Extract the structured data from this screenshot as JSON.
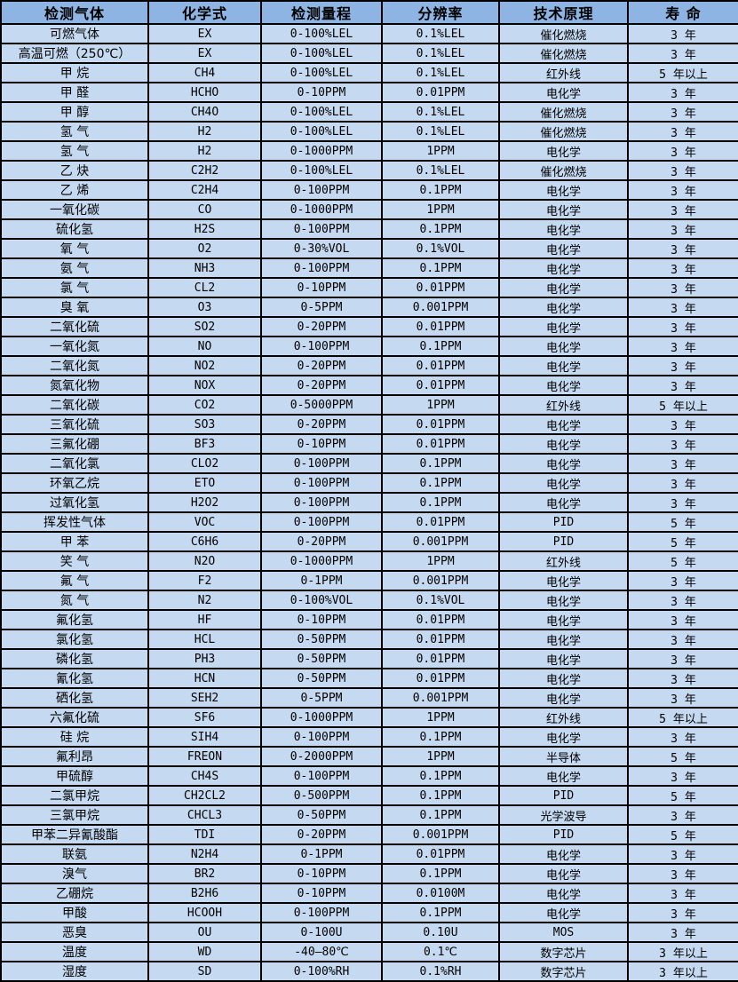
{
  "colors": {
    "header_bg": "#8DB4E2",
    "row_bg": "#C5D9F1",
    "border": "#000000",
    "text": "#000000"
  },
  "table": {
    "columns": [
      {
        "label": "检测气体"
      },
      {
        "label": "化学式"
      },
      {
        "label": "检测量程"
      },
      {
        "label": "分辨率"
      },
      {
        "label": "技术原理"
      },
      {
        "label": "寿 命"
      }
    ],
    "rows": [
      [
        "可燃气体",
        "EX",
        "0-100%LEL",
        "0.1%LEL",
        "催化燃烧",
        "3 年"
      ],
      [
        "高温可燃（250℃）",
        "EX",
        "0-100%LEL",
        "0.1%LEL",
        "催化燃烧",
        "3 年"
      ],
      [
        "甲 烷",
        "CH4",
        "0-100%LEL",
        "0.1%LEL",
        "红外线",
        "5 年以上"
      ],
      [
        "甲 醛",
        "HCHO",
        "0-10PPM",
        "0.01PPM",
        "电化学",
        "3 年"
      ],
      [
        "甲 醇",
        "CH4O",
        "0-100%LEL",
        "0.1%LEL",
        "催化燃烧",
        "3 年"
      ],
      [
        "氢 气",
        "H2",
        "0-100%LEL",
        "0.1%LEL",
        "催化燃烧",
        "3 年"
      ],
      [
        "氢 气",
        "H2",
        "0-1000PPM",
        "1PPM",
        "电化学",
        "3 年"
      ],
      [
        "乙 炔",
        "C2H2",
        "0-100%LEL",
        "0.1%LEL",
        "催化燃烧",
        "3 年"
      ],
      [
        "乙 烯",
        "C2H4",
        "0-100PPM",
        "0.1PPM",
        "电化学",
        "3 年"
      ],
      [
        "一氧化碳",
        "CO",
        "0-1000PPM",
        "1PPM",
        "电化学",
        "3 年"
      ],
      [
        "硫化氢",
        "H2S",
        "0-100PPM",
        "0.1PPM",
        "电化学",
        "3 年"
      ],
      [
        "氧 气",
        "O2",
        "0-30%VOL",
        "0.1%VOL",
        "电化学",
        "3 年"
      ],
      [
        "氨 气",
        "NH3",
        "0-100PPM",
        "0.1PPM",
        "电化学",
        "3 年"
      ],
      [
        "氯 气",
        "CL2",
        "0-10PPM",
        "0.01PPM",
        "电化学",
        "3 年"
      ],
      [
        "臭 氧",
        "O3",
        "0-5PPM",
        "0.001PPM",
        "电化学",
        "3 年"
      ],
      [
        "二氧化硫",
        "SO2",
        "0-20PPM",
        "0.01PPM",
        "电化学",
        "3 年"
      ],
      [
        "一氧化氮",
        "NO",
        "0-100PPM",
        "0.1PPM",
        "电化学",
        "3 年"
      ],
      [
        "二氧化氮",
        "NO2",
        "0-20PPM",
        "0.01PPM",
        "电化学",
        "3 年"
      ],
      [
        "氮氧化物",
        "NOX",
        "0-20PPM",
        "0.01PPM",
        "电化学",
        "3 年"
      ],
      [
        "二氧化碳",
        "CO2",
        "0-5000PPM",
        "1PPM",
        "红外线",
        "5 年以上"
      ],
      [
        "三氧化硫",
        "SO3",
        "0-20PPM",
        "0.01PPM",
        "电化学",
        "3 年"
      ],
      [
        "三氟化硼",
        "BF3",
        "0-10PPM",
        "0.01PPM",
        "电化学",
        "3 年"
      ],
      [
        "二氧化氯",
        "CLO2",
        "0-100PPM",
        "0.1PPM",
        "电化学",
        "3 年"
      ],
      [
        "环氧乙烷",
        "ETO",
        "0-100PPM",
        "0.1PPM",
        "电化学",
        "3 年"
      ],
      [
        "过氧化氢",
        "H2O2",
        "0-100PPM",
        "0.1PPM",
        "电化学",
        "3 年"
      ],
      [
        "挥发性气体",
        "VOC",
        "0-100PPM",
        "0.01PPM",
        "PID",
        "5 年"
      ],
      [
        "甲 苯",
        "C6H6",
        "0-20PPM",
        "0.001PPM",
        "PID",
        "5 年"
      ],
      [
        "笑 气",
        "N2O",
        "0-1000PPM",
        "1PPM",
        "红外线",
        "5 年"
      ],
      [
        "氟 气",
        "F2",
        "0-1PPM",
        "0.001PPM",
        "电化学",
        "3 年"
      ],
      [
        "氮 气",
        "N2",
        "0-100%VOL",
        "0.1%VOL",
        "电化学",
        "3 年"
      ],
      [
        "氟化氢",
        "HF",
        "0-10PPM",
        "0.01PPM",
        "电化学",
        "3 年"
      ],
      [
        "氯化氢",
        "HCL",
        "0-50PPM",
        "0.01PPM",
        "电化学",
        "3 年"
      ],
      [
        "磷化氢",
        "PH3",
        "0-50PPM",
        "0.01PPM",
        "电化学",
        "3 年"
      ],
      [
        "氰化氢",
        "HCN",
        "0-50PPM",
        "0.01PPM",
        "电化学",
        "3 年"
      ],
      [
        "硒化氢",
        "SEH2",
        "0-5PPM",
        "0.001PPM",
        "电化学",
        "3 年"
      ],
      [
        "六氟化硫",
        "SF6",
        "0-1000PPM",
        "1PPM",
        "红外线",
        "5 年以上"
      ],
      [
        "硅 烷",
        "SIH4",
        "0-100PPM",
        "0.1PPM",
        "电化学",
        "3 年"
      ],
      [
        "氟利昂",
        "FREON",
        "0-2000PPM",
        "1PPM",
        "半导体",
        "5 年"
      ],
      [
        "甲硫醇",
        "CH4S",
        "0-100PPM",
        "0.1PPM",
        "电化学",
        "3 年"
      ],
      [
        "二氯甲烷",
        "CH2CL2",
        "0-500PPM",
        "0.1PPM",
        "PID",
        "5 年"
      ],
      [
        "三氯甲烷",
        "CHCL3",
        "0-50PPM",
        "0.1PPM",
        "光学波导",
        "3 年"
      ],
      [
        "甲苯二异氰酸酯",
        "TDI",
        "0-20PPM",
        "0.001PPM",
        "PID",
        "5 年"
      ],
      [
        "联氨",
        "N2H4",
        "0-1PPM",
        "0.01PPM",
        "电化学",
        "3 年"
      ],
      [
        "溴气",
        "BR2",
        "0-10PPM",
        "0.1PPM",
        "电化学",
        "3 年"
      ],
      [
        "乙硼烷",
        "B2H6",
        "0-10PPM",
        "0.0100M",
        "电化学",
        "3 年"
      ],
      [
        "甲酸",
        "HCOOH",
        "0-100PPM",
        "0.1PPM",
        "电化学",
        "3 年"
      ],
      [
        "恶臭",
        "OU",
        "0-100U",
        "0.10U",
        "MOS",
        "3 年"
      ],
      [
        "温度",
        "WD",
        "-40—80℃",
        "0.1℃",
        "数字芯片",
        "3 年以上"
      ],
      [
        "湿度",
        "SD",
        "0-100%RH",
        "0.1%RH",
        "数字芯片",
        "3 年以上"
      ]
    ]
  }
}
